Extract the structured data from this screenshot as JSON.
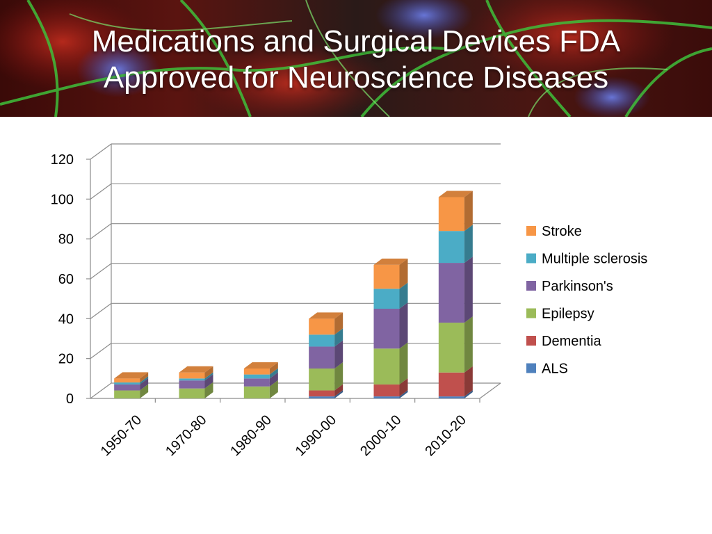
{
  "slide": {
    "title_line1": "Medications and Surgical Devices FDA",
    "title_line2": "Approved for Neuroscience Diseases",
    "banner_image": "microscopy-neurons-image"
  },
  "chart_data": {
    "type": "bar",
    "stacked": true,
    "style": "3d",
    "title": "",
    "xlabel": "",
    "ylabel": "",
    "categories": [
      "1950-70",
      "1970-80",
      "1980-90",
      "1990-00",
      "2000-10",
      "2010-20"
    ],
    "ylim": [
      0,
      120
    ],
    "yticks": [
      0,
      20,
      40,
      60,
      80,
      100,
      120
    ],
    "grid": true,
    "legend": "right",
    "series": [
      {
        "name": "ALS",
        "color": "#4f81bd",
        "values": [
          0,
          0,
          0,
          1,
          1,
          1
        ]
      },
      {
        "name": "Dementia",
        "color": "#c0504d",
        "values": [
          0,
          0,
          0,
          3,
          6,
          12
        ]
      },
      {
        "name": "Epilepsy",
        "color": "#9bbb59",
        "values": [
          4,
          5,
          6,
          11,
          18,
          25
        ]
      },
      {
        "name": "Parkinson's",
        "color": "#8064a2",
        "values": [
          3,
          4,
          4,
          11,
          20,
          30
        ]
      },
      {
        "name": "Multiple sclerosis",
        "color": "#4bacc6",
        "values": [
          1,
          1,
          2,
          6,
          10,
          16
        ]
      },
      {
        "name": "Stroke",
        "color": "#f79646",
        "values": [
          2,
          3,
          3,
          8,
          12,
          17
        ]
      }
    ]
  }
}
